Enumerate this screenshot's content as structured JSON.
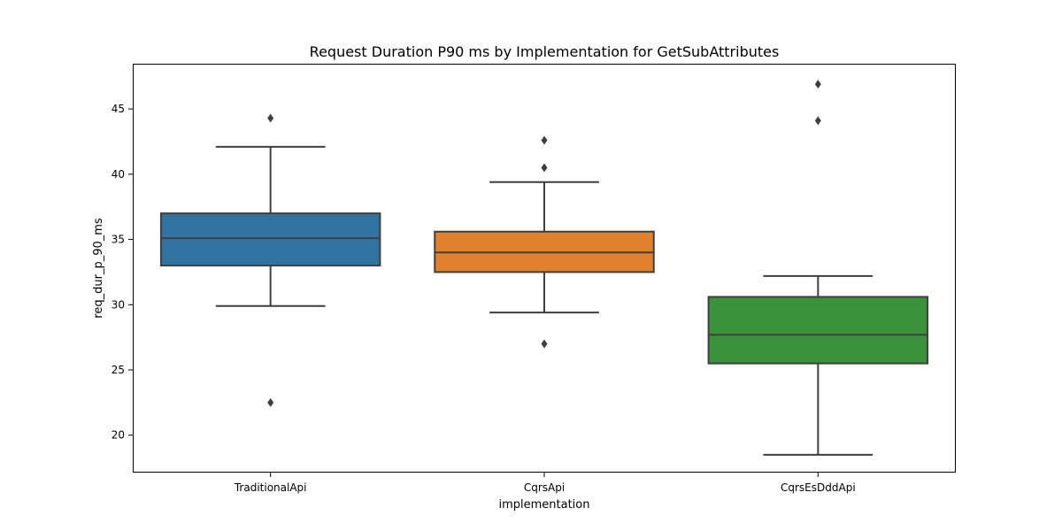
{
  "chart_data": {
    "type": "box",
    "title": "Request Duration P90 ms by Implementation for GetSubAttributes",
    "xlabel": "implementation",
    "ylabel": "req_dur_p_90_ms",
    "ylim": [
      17.2,
      48.4
    ],
    "yticks": [
      20,
      25,
      30,
      35,
      40,
      45
    ],
    "grid": false,
    "categories": [
      "TraditionalApi",
      "CqrsApi",
      "CqrsEsDddApi"
    ],
    "boxes": [
      {
        "category": "TraditionalApi",
        "color": "#3274a1",
        "whisker_low": 29.9,
        "q1": 33.0,
        "median": 35.1,
        "q3": 37.0,
        "whisker_high": 42.1,
        "outliers": [
          44.3,
          22.5
        ]
      },
      {
        "category": "CqrsApi",
        "color": "#e1812c",
        "whisker_low": 29.4,
        "q1": 32.5,
        "median": 34.0,
        "q3": 35.6,
        "whisker_high": 39.4,
        "outliers": [
          42.6,
          40.5,
          27.0
        ]
      },
      {
        "category": "CqrsEsDddApi",
        "color": "#3a923a",
        "whisker_low": 18.5,
        "q1": 25.5,
        "median": 27.7,
        "q3": 30.6,
        "whisker_high": 32.2,
        "outliers": [
          46.9,
          44.1
        ]
      }
    ]
  }
}
